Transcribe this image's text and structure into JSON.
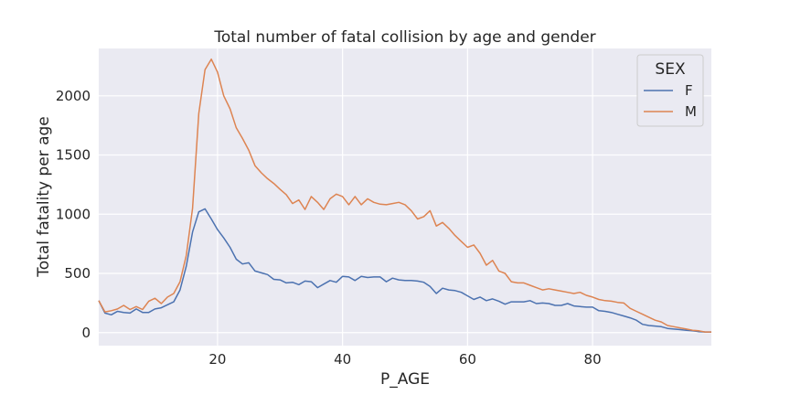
{
  "chart_data": {
    "type": "line",
    "title": "Total number of fatal collision by age and gender",
    "xlabel": "P_AGE",
    "ylabel": "Total fatality per age",
    "xlim": [
      1,
      99
    ],
    "ylim": [
      -110,
      2400
    ],
    "xticks": [
      "20",
      "40",
      "60",
      "80"
    ],
    "yticks": [
      "0",
      "500",
      "1000",
      "1500",
      "2000"
    ],
    "grid": true,
    "legend": {
      "title": "SEX",
      "position": "top-right"
    },
    "x": [
      1,
      2,
      3,
      4,
      5,
      6,
      7,
      8,
      9,
      10,
      11,
      12,
      13,
      14,
      15,
      16,
      17,
      18,
      19,
      20,
      21,
      22,
      23,
      24,
      25,
      26,
      27,
      28,
      29,
      30,
      31,
      32,
      33,
      34,
      35,
      36,
      37,
      38,
      39,
      40,
      41,
      42,
      43,
      44,
      45,
      46,
      47,
      48,
      49,
      50,
      51,
      52,
      53,
      54,
      55,
      56,
      57,
      58,
      59,
      60,
      61,
      62,
      63,
      64,
      65,
      66,
      67,
      68,
      69,
      70,
      71,
      72,
      73,
      74,
      75,
      76,
      77,
      78,
      79,
      80,
      81,
      82,
      83,
      84,
      85,
      86,
      87,
      88,
      89,
      90,
      91,
      92,
      93,
      94,
      95,
      96,
      97,
      98,
      99
    ],
    "series": [
      {
        "name": "F",
        "color": "#4c72b0",
        "values": [
          270,
          165,
          150,
          180,
          170,
          165,
          200,
          170,
          170,
          200,
          210,
          235,
          260,
          360,
          560,
          850,
          1020,
          1045,
          960,
          870,
          800,
          720,
          620,
          580,
          590,
          520,
          505,
          490,
          450,
          445,
          420,
          425,
          405,
          435,
          430,
          380,
          410,
          440,
          425,
          475,
          470,
          440,
          475,
          465,
          470,
          470,
          430,
          460,
          445,
          440,
          440,
          435,
          425,
          390,
          330,
          375,
          360,
          355,
          340,
          310,
          280,
          300,
          270,
          285,
          265,
          240,
          260,
          260,
          260,
          270,
          245,
          250,
          245,
          230,
          230,
          245,
          225,
          220,
          215,
          215,
          185,
          180,
          170,
          155,
          140,
          125,
          105,
          70,
          60,
          55,
          50,
          35,
          30,
          25,
          20,
          15,
          8,
          5,
          5
        ]
      },
      {
        "name": "M",
        "color": "#dd8452",
        "values": [
          270,
          175,
          185,
          200,
          230,
          195,
          220,
          195,
          265,
          290,
          245,
          300,
          330,
          430,
          650,
          1050,
          1850,
          2220,
          2310,
          2200,
          2000,
          1890,
          1730,
          1640,
          1540,
          1410,
          1350,
          1300,
          1260,
          1210,
          1165,
          1090,
          1120,
          1040,
          1150,
          1100,
          1040,
          1130,
          1170,
          1150,
          1080,
          1150,
          1080,
          1130,
          1100,
          1085,
          1080,
          1090,
          1100,
          1080,
          1030,
          960,
          980,
          1030,
          900,
          930,
          880,
          820,
          770,
          720,
          740,
          670,
          570,
          610,
          520,
          500,
          430,
          420,
          420,
          400,
          380,
          360,
          370,
          360,
          350,
          340,
          330,
          340,
          315,
          300,
          280,
          270,
          265,
          255,
          250,
          205,
          180,
          155,
          130,
          105,
          90,
          60,
          50,
          40,
          30,
          20,
          15,
          5,
          5
        ]
      }
    ]
  }
}
